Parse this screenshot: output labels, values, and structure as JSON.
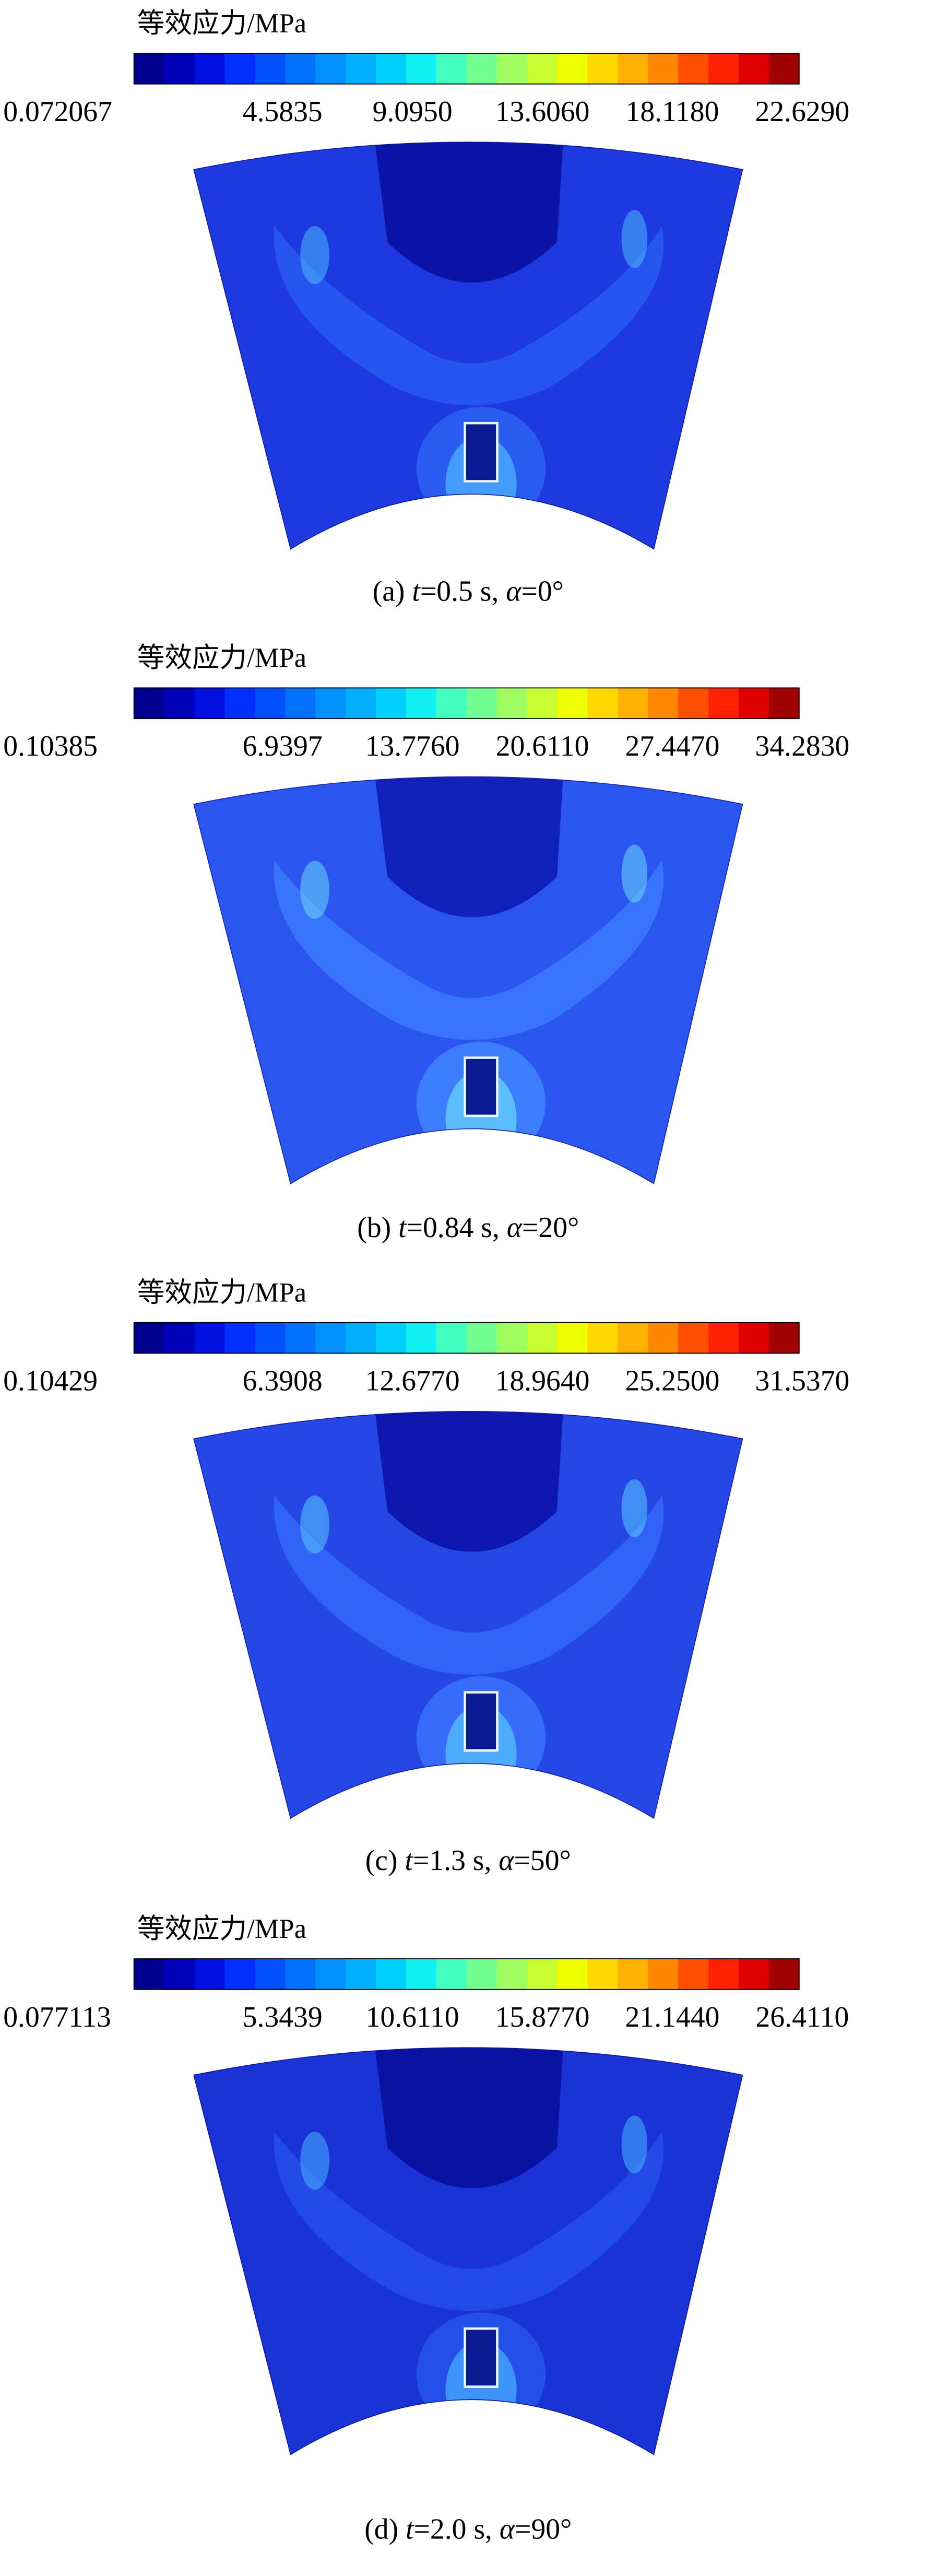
{
  "panels": [
    {
      "legend_title": "等效应力/MPa",
      "ticks": [
        "0.072067",
        "4.5835",
        "9.0950",
        "13.6060",
        "18.1180",
        "22.6290"
      ],
      "caption": [
        {
          "text": "(a) "
        },
        {
          "text": "t",
          "italic": true
        },
        {
          "text": "=0.5 s, "
        },
        {
          "text": "α",
          "italic": true
        },
        {
          "text": "=0°"
        }
      ]
    },
    {
      "legend_title": "等效应力/MPa",
      "ticks": [
        "0.10385",
        "6.9397",
        "13.7760",
        "20.6110",
        "27.4470",
        "34.2830"
      ],
      "caption": [
        {
          "text": "(b) "
        },
        {
          "text": "t",
          "italic": true
        },
        {
          "text": "=0.84 s, "
        },
        {
          "text": "α",
          "italic": true
        },
        {
          "text": "=20°"
        }
      ]
    },
    {
      "legend_title": "等效应力/MPa",
      "ticks": [
        "0.10429",
        "6.3908",
        "12.6770",
        "18.9640",
        "25.2500",
        "31.5370"
      ],
      "caption": [
        {
          "text": "(c) "
        },
        {
          "text": "t",
          "italic": true
        },
        {
          "text": "=1.3 s, "
        },
        {
          "text": "α",
          "italic": true
        },
        {
          "text": "=50°"
        }
      ]
    },
    {
      "legend_title": "等效应力/MPa",
      "ticks": [
        "0.077113",
        "5.3439",
        "10.6110",
        "15.8770",
        "21.1440",
        "26.4110"
      ],
      "caption": [
        {
          "text": "(d) "
        },
        {
          "text": "t",
          "italic": true
        },
        {
          "text": "=2.0 s, "
        },
        {
          "text": "α",
          "italic": true
        },
        {
          "text": "=90°"
        }
      ]
    }
  ],
  "colorbar_colors": [
    "#00008f",
    "#0000b8",
    "#0010e0",
    "#0030ff",
    "#0050ff",
    "#0070ff",
    "#0090ff",
    "#00b0ff",
    "#00d0ff",
    "#10f0f0",
    "#40ffc0",
    "#70ff90",
    "#a0ff60",
    "#c8ff30",
    "#f0ff00",
    "#ffd800",
    "#ffb000",
    "#ff8800",
    "#ff5000",
    "#ff2000",
    "#e00000",
    "#a00000"
  ]
}
